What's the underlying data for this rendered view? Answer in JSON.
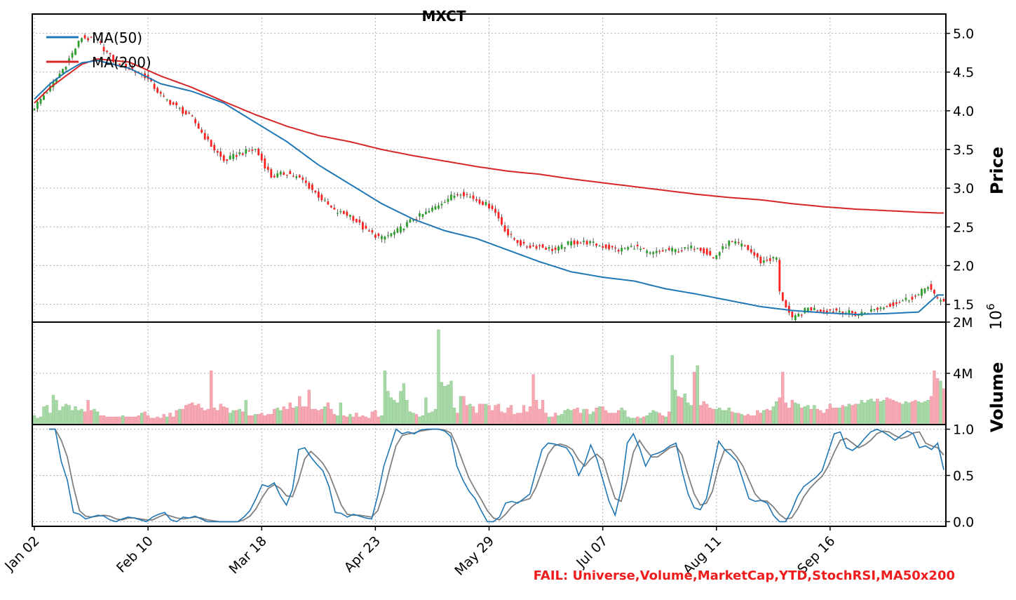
{
  "chart_data": {
    "type": "candlestick",
    "title": "MXCT",
    "x_tick_labels": [
      "Jan 02",
      "Feb 10",
      "Mar 18",
      "Apr 23",
      "May 29",
      "Jul 07",
      "Aug 11",
      "Sep 16"
    ],
    "price_panel": {
      "ylabel": "Price",
      "ylim": [
        1.27,
        5.25
      ],
      "yticks": [
        "1.5",
        "2.0",
        "2.5",
        "3.0",
        "3.5",
        "4.0",
        "4.5",
        "5.0"
      ],
      "legend": [
        "MA(50)",
        "MA(200)"
      ],
      "legend_position": "top-left",
      "up_color": "#2ca02c",
      "down_color": "#ff2020",
      "ma50_color": "#1f77b4",
      "ma200_color": "#d62728",
      "close_anchors": [
        [
          0,
          4.05
        ],
        [
          5,
          4.3
        ],
        [
          10,
          4.6
        ],
        [
          15,
          4.95
        ],
        [
          20,
          4.9
        ],
        [
          25,
          4.65
        ],
        [
          30,
          4.55
        ],
        [
          35,
          4.45
        ],
        [
          40,
          4.2
        ],
        [
          45,
          4.05
        ],
        [
          50,
          3.9
        ],
        [
          55,
          3.6
        ],
        [
          60,
          3.35
        ],
        [
          65,
          3.45
        ],
        [
          70,
          3.5
        ],
        [
          75,
          3.15
        ],
        [
          80,
          3.2
        ],
        [
          85,
          3.1
        ],
        [
          90,
          2.9
        ],
        [
          95,
          2.7
        ],
        [
          100,
          2.65
        ],
        [
          105,
          2.45
        ],
        [
          110,
          2.35
        ],
        [
          115,
          2.45
        ],
        [
          120,
          2.6
        ],
        [
          125,
          2.7
        ],
        [
          130,
          2.85
        ],
        [
          135,
          2.95
        ],
        [
          140,
          2.85
        ],
        [
          145,
          2.75
        ],
        [
          150,
          2.4
        ],
        [
          155,
          2.25
        ],
        [
          160,
          2.25
        ],
        [
          165,
          2.2
        ],
        [
          170,
          2.3
        ],
        [
          175,
          2.3
        ],
        [
          180,
          2.25
        ],
        [
          185,
          2.2
        ],
        [
          190,
          2.25
        ],
        [
          195,
          2.15
        ],
        [
          200,
          2.2
        ],
        [
          205,
          2.2
        ],
        [
          210,
          2.25
        ],
        [
          215,
          2.1
        ],
        [
          220,
          2.3
        ],
        [
          225,
          2.25
        ],
        [
          230,
          2.05
        ],
        [
          235,
          2.1
        ],
        [
          236,
          1.65
        ],
        [
          240,
          1.3
        ],
        [
          245,
          1.45
        ],
        [
          250,
          1.42
        ],
        [
          255,
          1.42
        ],
        [
          260,
          1.37
        ],
        [
          265,
          1.42
        ],
        [
          270,
          1.48
        ],
        [
          275,
          1.55
        ],
        [
          280,
          1.62
        ],
        [
          283,
          1.75
        ],
        [
          286,
          1.55
        ]
      ],
      "ma50_anchors": [
        [
          0,
          4.15
        ],
        [
          5,
          4.35
        ],
        [
          10,
          4.5
        ],
        [
          15,
          4.62
        ],
        [
          20,
          4.65
        ],
        [
          30,
          4.55
        ],
        [
          40,
          4.35
        ],
        [
          50,
          4.25
        ],
        [
          60,
          4.1
        ],
        [
          70,
          3.85
        ],
        [
          80,
          3.6
        ],
        [
          90,
          3.3
        ],
        [
          100,
          3.05
        ],
        [
          110,
          2.8
        ],
        [
          120,
          2.6
        ],
        [
          130,
          2.45
        ],
        [
          140,
          2.35
        ],
        [
          150,
          2.2
        ],
        [
          160,
          2.05
        ],
        [
          170,
          1.92
        ],
        [
          180,
          1.85
        ],
        [
          190,
          1.8
        ],
        [
          200,
          1.7
        ],
        [
          210,
          1.63
        ],
        [
          220,
          1.55
        ],
        [
          230,
          1.47
        ],
        [
          240,
          1.42
        ],
        [
          250,
          1.39
        ],
        [
          260,
          1.37
        ],
        [
          270,
          1.38
        ],
        [
          280,
          1.4
        ],
        [
          286,
          1.62
        ]
      ],
      "ma200_anchors": [
        [
          0,
          4.1
        ],
        [
          5,
          4.3
        ],
        [
          10,
          4.45
        ],
        [
          15,
          4.6
        ],
        [
          20,
          4.67
        ],
        [
          30,
          4.63
        ],
        [
          40,
          4.45
        ],
        [
          50,
          4.3
        ],
        [
          60,
          4.12
        ],
        [
          70,
          3.95
        ],
        [
          80,
          3.8
        ],
        [
          90,
          3.68
        ],
        [
          100,
          3.6
        ],
        [
          110,
          3.5
        ],
        [
          120,
          3.42
        ],
        [
          130,
          3.35
        ],
        [
          140,
          3.28
        ],
        [
          150,
          3.22
        ],
        [
          160,
          3.18
        ],
        [
          170,
          3.12
        ],
        [
          180,
          3.07
        ],
        [
          190,
          3.02
        ],
        [
          200,
          2.97
        ],
        [
          210,
          2.92
        ],
        [
          220,
          2.88
        ],
        [
          230,
          2.85
        ],
        [
          240,
          2.8
        ],
        [
          250,
          2.76
        ],
        [
          260,
          2.73
        ],
        [
          270,
          2.71
        ],
        [
          280,
          2.69
        ],
        [
          286,
          2.68
        ]
      ]
    },
    "volume_panel": {
      "ylabel": "Volume",
      "exponent_label": "10",
      "exponent_power": "6",
      "ylim": [
        0,
        4.0
      ],
      "yticks": [
        "2M",
        "4M"
      ],
      "up_color": "#a6d9a6",
      "down_color": "#f7a8b0",
      "values_millions": [
        0.35,
        0.25,
        0.3,
        0.7,
        0.75,
        0.45,
        1.15,
        0.95,
        0.55,
        0.7,
        0.8,
        0.75,
        0.55,
        0.7,
        0.55,
        0.6,
        0.5,
        0.95,
        0.55,
        0.6,
        0.5,
        0.35,
        0.35,
        0.3,
        0.3,
        0.3,
        0.3,
        0.3,
        0.35,
        0.3,
        0.3,
        0.3,
        0.3,
        0.35,
        0.45,
        0.5,
        0.35,
        0.25,
        0.25,
        0.3,
        0.25,
        0.4,
        0.3,
        0.45,
        0.3,
        0.55,
        0.6,
        0.6,
        0.75,
        0.8,
        0.85,
        0.75,
        0.8,
        0.65,
        0.55,
        0.6,
        2.1,
        0.65,
        0.55,
        0.8,
        0.7,
        0.65,
        0.45,
        0.55,
        0.55,
        0.6,
        0.5,
        0.95,
        0.35,
        0.35,
        0.4,
        0.4,
        0.45,
        0.35,
        0.4,
        0.4,
        0.6,
        0.65,
        0.55,
        0.7,
        0.6,
        0.85,
        0.65,
        0.7,
        1.1,
        0.7,
        0.7,
        1.35,
        0.6,
        0.6,
        0.55,
        0.6,
        0.7,
        0.85,
        0.6,
        0.4,
        0.35,
        0.85,
        0.35,
        0.3,
        0.4,
        0.3,
        0.45,
        0.3,
        0.35,
        0.3,
        0.25,
        0.5,
        0.55,
        0.3,
        0.35,
        2.1,
        1.3,
        1.05,
        0.95,
        0.85,
        1.3,
        1.6,
        0.95,
        0.5,
        0.45,
        0.4,
        0.3,
        0.35,
        1.05,
        0.45,
        0.5,
        0.6,
        3.7,
        1.65,
        1.5,
        1.55,
        1.7,
        0.65,
        0.45,
        1.1,
        1.1,
        0.75,
        0.8,
        0.7,
        0.45,
        0.8,
        0.8,
        0.8,
        0.75,
        0.55,
        0.75,
        0.8,
        0.5,
        0.45,
        0.65,
        0.75,
        0.4,
        0.45,
        0.45,
        0.75,
        0.5,
        0.7,
        1.95,
        0.95,
        0.6,
        0.95,
        0.45,
        0.3,
        0.3,
        0.45,
        0.35,
        0.4,
        0.55,
        0.6,
        0.55,
        0.6,
        0.65,
        0.45,
        0.6,
        0.6,
        0.4,
        0.5,
        0.65,
        0.7,
        0.7,
        0.55,
        0.45,
        0.45,
        0.45,
        0.55,
        0.65,
        0.55,
        0.3,
        0.25,
        0.25,
        0.3,
        0.25,
        0.3,
        0.35,
        0.45,
        0.55,
        0.5,
        0.45,
        0.35,
        0.3,
        0.5,
        2.7,
        1.35,
        1.1,
        1.05,
        1.2,
        0.85,
        0.75,
        2.05,
        2.3,
        0.75,
        0.9,
        0.8,
        0.65,
        0.6,
        0.6,
        0.65,
        0.55,
        0.55,
        0.65,
        0.5,
        0.45,
        0.45,
        0.4,
        0.35,
        0.4,
        0.35,
        0.35,
        0.55,
        0.45,
        0.55,
        0.6,
        0.55,
        0.7,
        0.9,
        1.05,
        2.05,
        0.85,
        0.65,
        0.95,
        0.85,
        0.8,
        0.65,
        0.7,
        0.75,
        0.6,
        0.75,
        0.6,
        0.55,
        0.45,
        0.6,
        0.8,
        0.65,
        0.65,
        0.65,
        0.75,
        0.7,
        0.8,
        0.75,
        0.8,
        0.8,
        0.95,
        0.85,
        0.95,
        1.0,
        0.9,
        1.0,
        0.9,
        0.95,
        1.05,
        1.0,
        0.95,
        0.9,
        0.85,
        0.8,
        0.9,
        0.85,
        0.9,
        0.95,
        0.9,
        0.85,
        0.9,
        0.95,
        1.1,
        2.1,
        1.8,
        1.7,
        1.4
      ]
    },
    "stochrsi_panel": {
      "ylim": [
        -0.05,
        1.05
      ],
      "yticks": [
        "0.0",
        "0.5",
        "1.0"
      ],
      "k_color": "#1f77b4",
      "d_color": "#808080",
      "k_values": [
        1.0,
        1.0,
        0.65,
        0.45,
        0.1,
        0.08,
        0.03,
        0.05,
        0.07,
        0.06,
        0.02,
        0.0,
        0.03,
        0.05,
        0.04,
        0.02,
        0.0,
        0.05,
        0.08,
        0.1,
        0.02,
        0.0,
        0.05,
        0.04,
        0.06,
        0.03,
        0.0,
        0.0,
        0.0,
        0.0,
        0.0,
        0.0,
        0.05,
        0.12,
        0.25,
        0.4,
        0.38,
        0.42,
        0.28,
        0.18,
        0.35,
        0.78,
        0.8,
        0.7,
        0.62,
        0.55,
        0.38,
        0.1,
        0.09,
        0.05,
        0.08,
        0.06,
        0.04,
        0.03,
        0.28,
        0.6,
        0.8,
        1.0,
        0.95,
        0.97,
        0.95,
        0.99,
        1.0,
        1.0,
        1.0,
        0.98,
        0.92,
        0.6,
        0.45,
        0.33,
        0.25,
        0.12,
        0.0,
        0.0,
        0.05,
        0.2,
        0.22,
        0.2,
        0.25,
        0.3,
        0.55,
        0.78,
        0.85,
        0.84,
        0.82,
        0.8,
        0.7,
        0.5,
        0.63,
        0.83,
        0.68,
        0.45,
        0.22,
        0.07,
        0.35,
        0.85,
        0.95,
        0.8,
        0.6,
        0.72,
        0.74,
        0.77,
        0.82,
        0.85,
        0.55,
        0.3,
        0.15,
        0.13,
        0.25,
        0.55,
        0.87,
        0.78,
        0.72,
        0.65,
        0.45,
        0.25,
        0.22,
        0.23,
        0.2,
        0.07,
        0.0,
        0.0,
        0.12,
        0.28,
        0.38,
        0.43,
        0.48,
        0.55,
        0.75,
        0.95,
        0.97,
        0.8,
        0.77,
        0.82,
        0.9,
        0.97,
        1.0,
        0.97,
        0.93,
        0.88,
        0.93,
        0.98,
        0.95,
        0.8,
        0.82,
        0.78,
        0.85,
        0.56
      ],
      "d_values": [
        1.0,
        1.0,
        0.88,
        0.7,
        0.38,
        0.12,
        0.06,
        0.05,
        0.06,
        0.07,
        0.06,
        0.03,
        0.02,
        0.04,
        0.04,
        0.03,
        0.02,
        0.02,
        0.05,
        0.08,
        0.06,
        0.04,
        0.03,
        0.04,
        0.05,
        0.04,
        0.02,
        0.01,
        0.0,
        0.0,
        0.0,
        0.0,
        0.02,
        0.06,
        0.14,
        0.26,
        0.36,
        0.4,
        0.36,
        0.28,
        0.27,
        0.45,
        0.68,
        0.76,
        0.7,
        0.63,
        0.52,
        0.35,
        0.18,
        0.08,
        0.07,
        0.07,
        0.06,
        0.05,
        0.12,
        0.32,
        0.58,
        0.82,
        0.93,
        0.95,
        0.96,
        0.98,
        0.99,
        1.0,
        1.0,
        0.99,
        0.96,
        0.82,
        0.64,
        0.47,
        0.35,
        0.24,
        0.12,
        0.04,
        0.02,
        0.08,
        0.16,
        0.21,
        0.23,
        0.25,
        0.37,
        0.55,
        0.73,
        0.82,
        0.84,
        0.82,
        0.78,
        0.67,
        0.6,
        0.68,
        0.73,
        0.67,
        0.45,
        0.25,
        0.22,
        0.45,
        0.75,
        0.88,
        0.78,
        0.7,
        0.7,
        0.75,
        0.8,
        0.82,
        0.72,
        0.5,
        0.3,
        0.18,
        0.2,
        0.33,
        0.6,
        0.78,
        0.78,
        0.7,
        0.6,
        0.45,
        0.3,
        0.23,
        0.22,
        0.16,
        0.08,
        0.03,
        0.04,
        0.14,
        0.27,
        0.36,
        0.43,
        0.49,
        0.6,
        0.75,
        0.88,
        0.9,
        0.85,
        0.8,
        0.83,
        0.88,
        0.95,
        0.98,
        0.97,
        0.93,
        0.9,
        0.92,
        0.96,
        0.97,
        0.85,
        0.82,
        0.8,
        0.72
      ]
    },
    "status_text": "FAIL: Universe,Volume,MarketCap,YTD,StochRSI,MA50x200",
    "status_color": "#ee1c1c"
  }
}
